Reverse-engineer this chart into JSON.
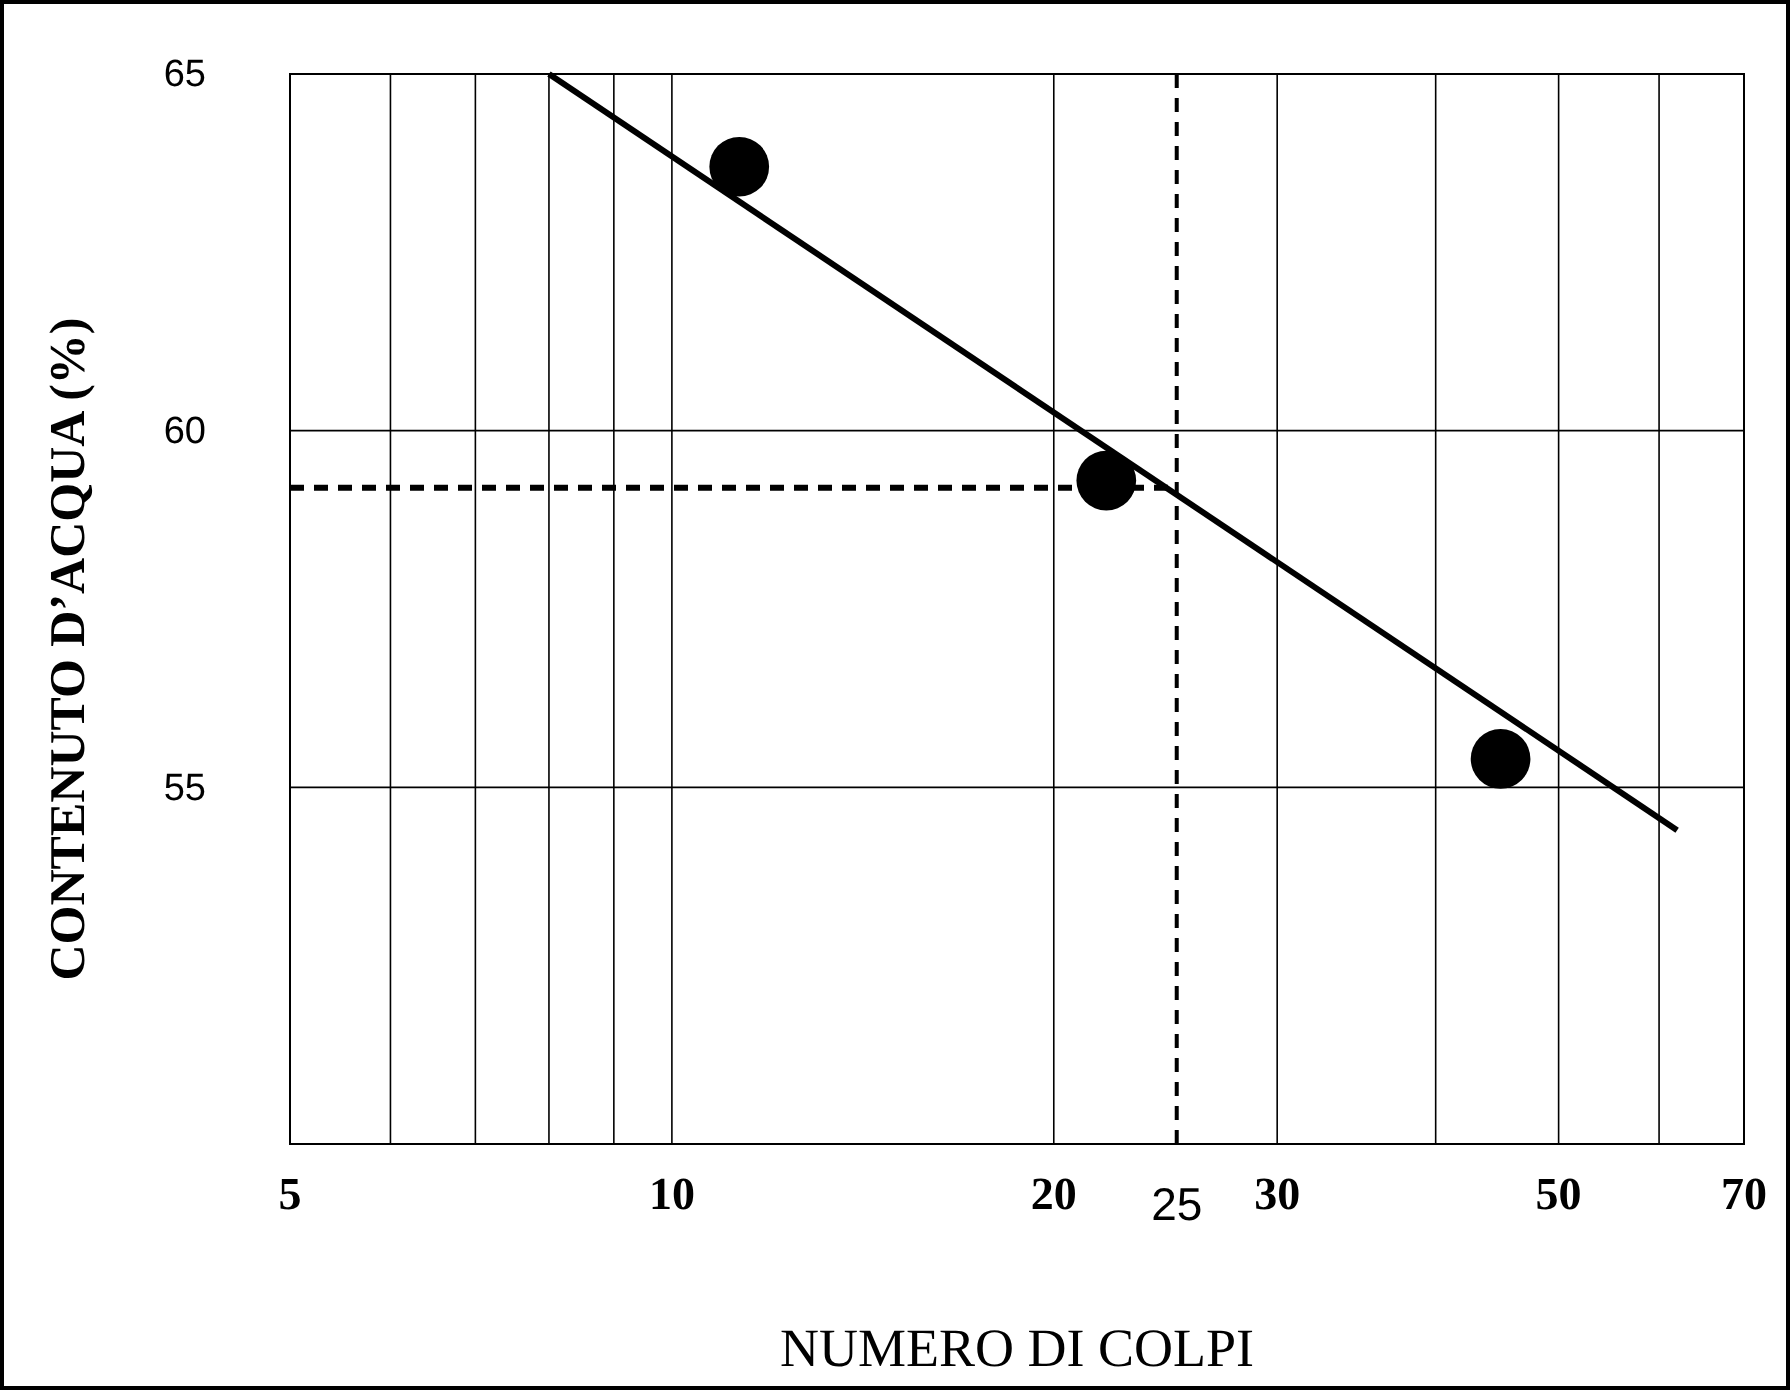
{
  "chart_data": {
    "type": "scatter",
    "xlabel": "NUMERO DI COLPI",
    "ylabel": "CONTENUTO D’ACQUA (%)",
    "log": "x",
    "xlim": [
      5,
      70
    ],
    "ylim": [
      50,
      65
    ],
    "xticks": [
      5,
      {
        "value": 6,
        "label": null
      },
      {
        "value": 7,
        "label": null
      },
      {
        "value": 8,
        "label": null
      },
      {
        "value": 9,
        "label": null
      },
      10,
      20,
      30,
      {
        "value": 40,
        "label": null
      },
      50,
      {
        "value": 60,
        "label": null
      },
      70
    ],
    "yticks": [
      55,
      60,
      65
    ],
    "grid": true,
    "series": [
      {
        "color": "#000000",
        "marker": "circle",
        "x": [
          11.3,
          22,
          45
        ],
        "values": [
          63.7,
          59.3,
          55.4
        ]
      },
      {
        "type": "line",
        "color": "#000000",
        "x": [
          8,
          62
        ],
        "values": [
          65,
          54.4
        ]
      },
      {
        "type": "line",
        "color": "#000000",
        "line_style": "dashed",
        "x": [
          5,
          25
        ],
        "values": [
          59.2,
          59.2
        ]
      }
    ],
    "ref_lines": [
      {
        "axis": "x",
        "value": 25,
        "label": "25",
        "line_style": "dashed"
      }
    ]
  }
}
